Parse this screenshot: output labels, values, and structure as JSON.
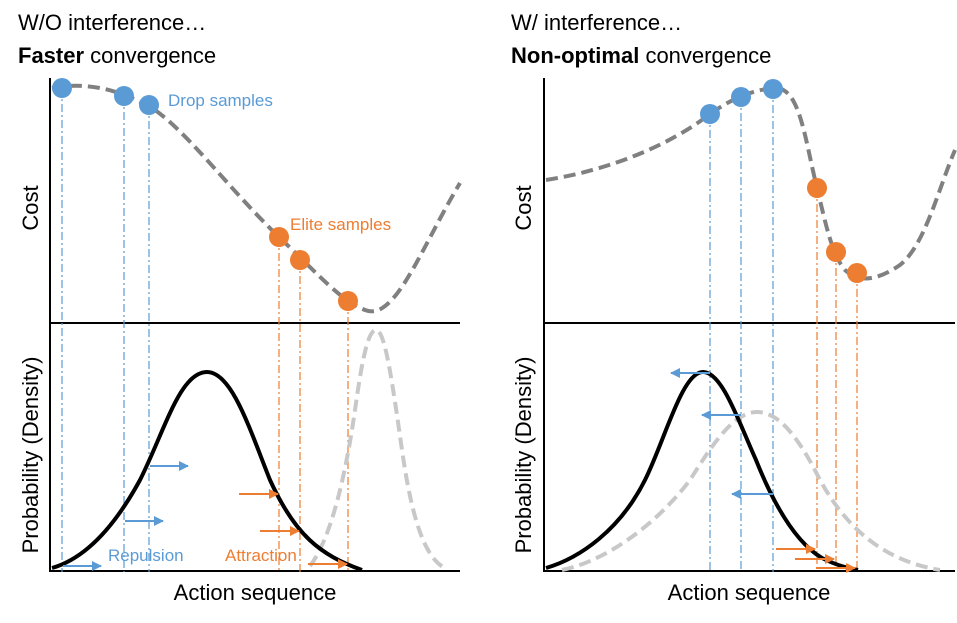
{
  "left_panel": {
    "title_line1": "W/O interference…",
    "title_bold": "Faster",
    "title_rest": " convergence",
    "drop_label": "Drop samples",
    "elite_label": "Elite samples",
    "repulsion_label": "Repulsion",
    "attraction_label": "Attraction",
    "y_label_top": "Cost",
    "y_label_bottom": "Probability (Density)",
    "x_label": "Action sequence"
  },
  "right_panel": {
    "title_line1": "W/ interference…",
    "title_bold": "Non-optimal",
    "title_rest": " convergence",
    "y_label_top": "Cost",
    "y_label_bottom": "Probability (Density)",
    "x_label": "Action sequence"
  },
  "colors": {
    "drop": "#5b9bd5",
    "elite": "#ed7d31",
    "cost_curve": "#808080",
    "new_density": "#c8c8c8",
    "density": "#000000"
  }
}
